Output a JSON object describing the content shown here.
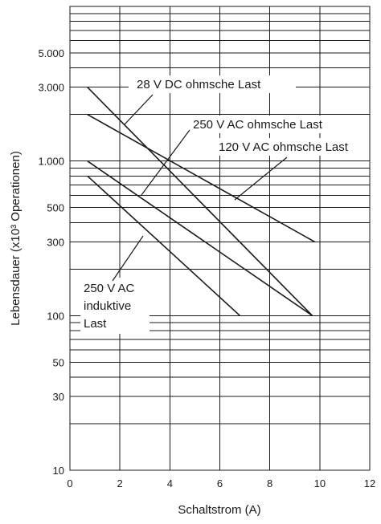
{
  "chart_data": {
    "type": "line",
    "title": "",
    "xlabel": "Schaltstrom (A)",
    "ylabel": "Lebensdauer (x10³ Operationen)",
    "xlim": [
      0,
      12
    ],
    "ylim": [
      10,
      10000
    ],
    "yscale": "log",
    "grid": true,
    "x_ticks": [
      0,
      2,
      4,
      6,
      8,
      10,
      12
    ],
    "x_tick_labels": [
      "0",
      "2",
      "4",
      "6",
      "8",
      "10",
      "12"
    ],
    "y_ticks": [
      10,
      30,
      50,
      100,
      300,
      500,
      1000,
      3000,
      5000
    ],
    "y_tick_labels": [
      "10",
      "30",
      "50",
      "100",
      "300",
      "500",
      "1.000",
      "3.000",
      "5.000"
    ],
    "series": [
      {
        "name": "28 V DC ohmsche Last",
        "x": [
          0.7,
          9.7
        ],
        "y": [
          3000,
          100
        ]
      },
      {
        "name": "120 V AC ohmsche Last",
        "x": [
          0.7,
          9.8
        ],
        "y": [
          2000,
          300
        ]
      },
      {
        "name": "250 V AC ohmsche Last",
        "x": [
          0.7,
          9.7
        ],
        "y": [
          1000,
          100
        ]
      },
      {
        "name": "250 V AC induktive Last",
        "x": [
          0.7,
          6.8
        ],
        "y": [
          800,
          100
        ]
      }
    ],
    "annotations": [
      {
        "lines": [
          "28 V DC ohmsche Last"
        ]
      },
      {
        "lines": [
          "250 V AC ohmsche Last"
        ]
      },
      {
        "lines": [
          "120 V AC ohmsche Last"
        ]
      },
      {
        "lines": [
          "250 V AC",
          "induktive",
          "Last"
        ]
      }
    ]
  }
}
